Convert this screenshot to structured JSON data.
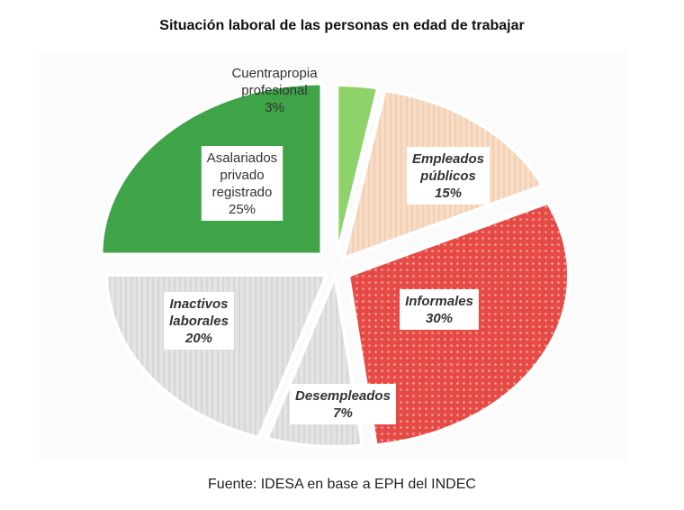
{
  "title": "Situación laboral de las personas en edad de trabajar",
  "source": "Fuente: IDESA en base a EPH del INDEC",
  "chart_data": {
    "type": "pie",
    "slices": [
      {
        "label_lines": [
          "Cuentrapropia",
          "profesional",
          "3%"
        ],
        "value": 3,
        "color": "#8ed36a",
        "pattern": "none"
      },
      {
        "label_lines": [
          "Empleados",
          "públicos",
          "15%"
        ],
        "value": 15,
        "color": "#f7dcc6",
        "pattern": "stripes"
      },
      {
        "label_lines": [
          "Informales",
          "30%"
        ],
        "value": 30,
        "color": "#e9534d",
        "pattern": "dots"
      },
      {
        "label_lines": [
          "Desempleados",
          "7%"
        ],
        "value": 7,
        "color": "#e4e4e4",
        "pattern": "stripes"
      },
      {
        "label_lines": [
          "Inactivos",
          "laborales",
          "20%"
        ],
        "value": 20,
        "color": "#e1e1e1",
        "pattern": "stripes"
      },
      {
        "label_lines": [
          "Asalariados",
          "privado",
          "registrado",
          "25%"
        ],
        "value": 25,
        "color": "#3ea447",
        "pattern": "none"
      }
    ]
  }
}
